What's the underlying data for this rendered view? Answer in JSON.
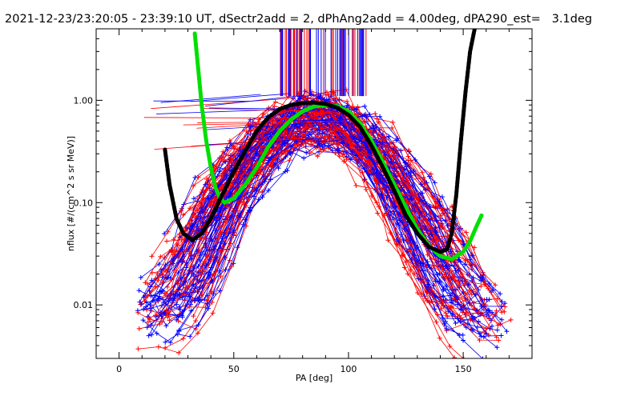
{
  "chart_data": {
    "type": "line",
    "title": "2021-12-23/23:20:05 - 23:39:10 UT, dSectr2add = 2, dPhAng2add = 4.00deg, dPA290_est=   3.1deg",
    "xlabel": "PA [deg]",
    "ylabel": "nflux [#/(cm^2 s sr MeV)]",
    "xlim": [
      -10,
      180
    ],
    "ylim": [
      0.003,
      5
    ],
    "yscale": "log",
    "xticks": [
      "0",
      "50",
      "100",
      "150"
    ],
    "yticks": [
      "0.01",
      "0.10",
      "1.00"
    ],
    "colors": {
      "series_red": "#ff0000",
      "series_blue": "#0000ff",
      "fit_green": "#00e000",
      "fit_black": "#000000"
    },
    "series": [
      {
        "color": "#00e000",
        "x": [
          33,
          36,
          38,
          40,
          42,
          44,
          46,
          50,
          55,
          60,
          65,
          70,
          75,
          80,
          85,
          90,
          95,
          100,
          105,
          110,
          115,
          120,
          125,
          130,
          135,
          140,
          145,
          150,
          153,
          156,
          158
        ],
        "values": [
          4.5,
          0.9,
          0.4,
          0.22,
          0.14,
          0.11,
          0.1,
          0.11,
          0.15,
          0.22,
          0.35,
          0.5,
          0.65,
          0.78,
          0.87,
          0.9,
          0.88,
          0.78,
          0.6,
          0.4,
          0.25,
          0.15,
          0.09,
          0.055,
          0.038,
          0.03,
          0.028,
          0.033,
          0.042,
          0.06,
          0.075
        ]
      },
      {
        "color": "#000000",
        "x": [
          20,
          22,
          25,
          28,
          32,
          36,
          40,
          45,
          50,
          55,
          60,
          65,
          70,
          75,
          80,
          85,
          90,
          95,
          100,
          105,
          110,
          115,
          120,
          125,
          130,
          135,
          140,
          143,
          145,
          147,
          149,
          151,
          153,
          155
        ],
        "values": [
          0.33,
          0.15,
          0.07,
          0.05,
          0.043,
          0.05,
          0.07,
          0.12,
          0.2,
          0.32,
          0.5,
          0.68,
          0.82,
          0.9,
          0.94,
          0.95,
          0.92,
          0.85,
          0.72,
          0.55,
          0.36,
          0.22,
          0.13,
          0.075,
          0.05,
          0.037,
          0.033,
          0.035,
          0.05,
          0.12,
          0.4,
          1.2,
          3.0,
          5.0
        ]
      }
    ]
  }
}
